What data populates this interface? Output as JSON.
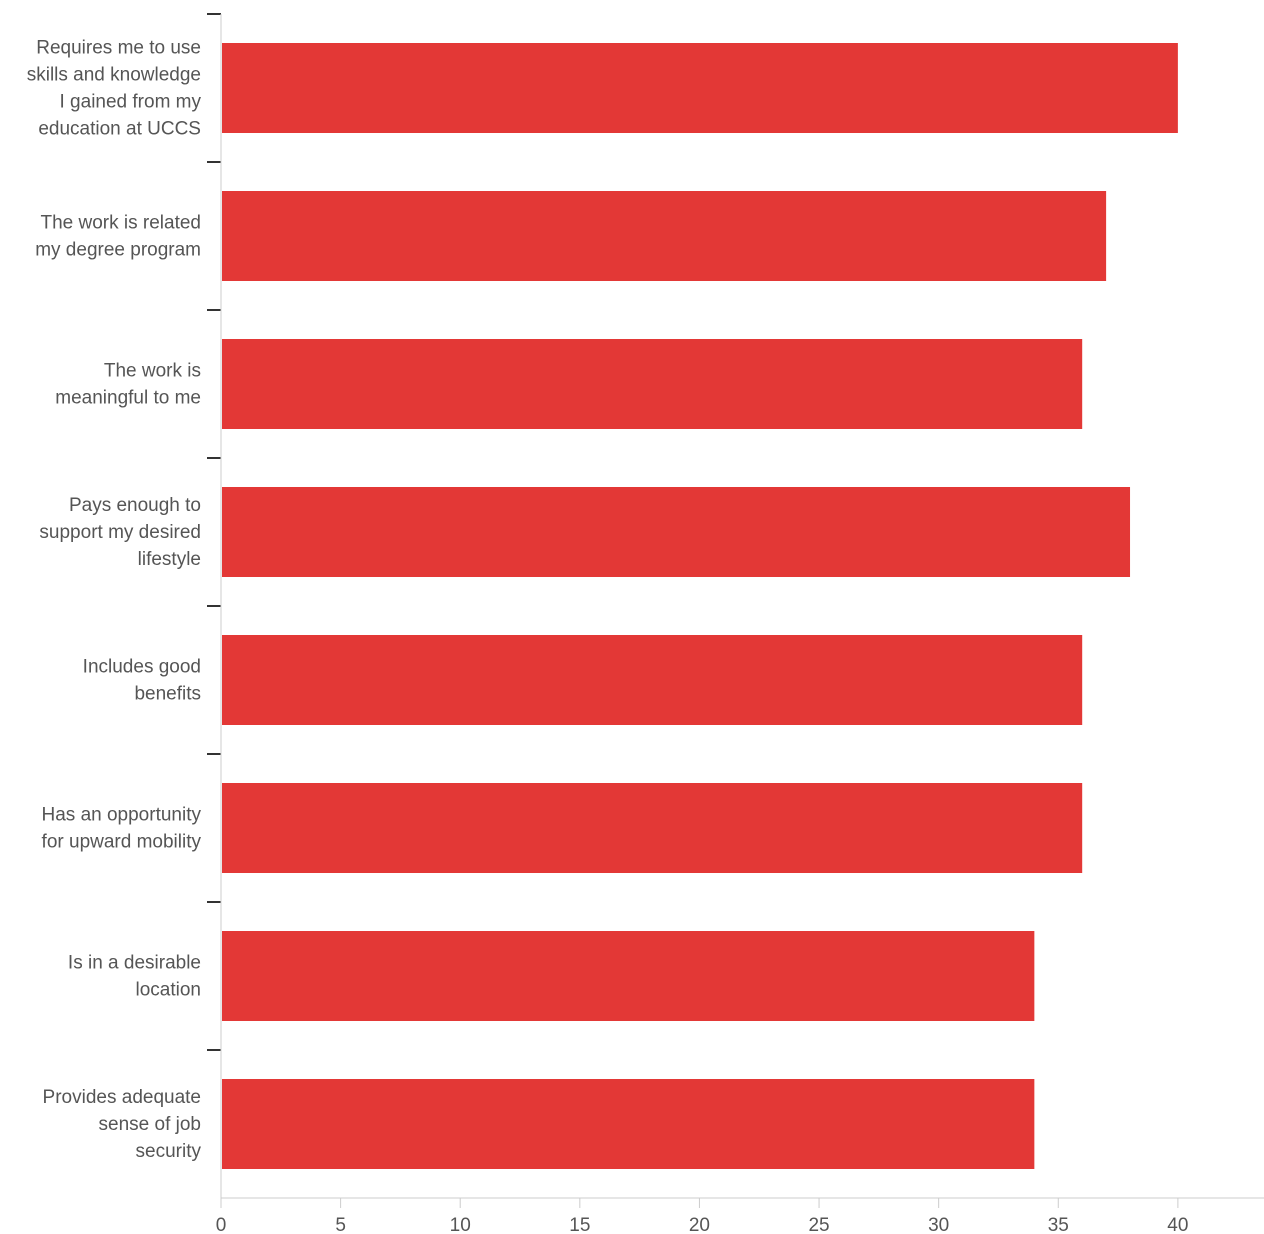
{
  "chart_data": {
    "type": "bar",
    "orientation": "horizontal",
    "categories": [
      [
        "Requires me to use",
        "skills and knowledge",
        "I gained from my",
        "education at UCCS"
      ],
      [
        "The work is related",
        "my degree program"
      ],
      [
        "The work is",
        "meaningful to me"
      ],
      [
        "Pays enough to",
        "support my desired",
        "lifestyle"
      ],
      [
        "Includes good",
        "benefits"
      ],
      [
        "Has an opportunity",
        "for upward mobility"
      ],
      [
        "Is in a desirable",
        "location"
      ],
      [
        "Provides adequate",
        "sense of job",
        "security"
      ]
    ],
    "values": [
      40,
      37,
      36,
      38,
      36,
      36,
      34,
      34
    ],
    "xlim": [
      0,
      43.6
    ],
    "xticks": [
      "0",
      "5",
      "10",
      "15",
      "20",
      "25",
      "30",
      "35",
      "40"
    ],
    "title": "",
    "xlabel": "",
    "ylabel": "",
    "grid": false,
    "legend": "none",
    "bar_color": "#e33836",
    "axis_color": "#cccccc",
    "tick_color": "#333333",
    "text_color": "#555555"
  }
}
